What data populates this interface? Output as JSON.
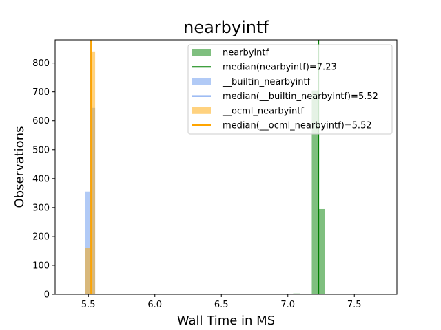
{
  "chart_data": {
    "type": "histogram",
    "title": "nearbyintf",
    "xlabel": "Wall Time in MS",
    "ylabel": "Observations",
    "xlim": [
      5.25,
      7.82
    ],
    "ylim": [
      0,
      880
    ],
    "xticks": [
      5.5,
      6.0,
      6.5,
      7.0,
      7.5
    ],
    "xtick_labels": [
      "5.5",
      "6.0",
      "6.5",
      "7.0",
      "7.5"
    ],
    "yticks": [
      0,
      100,
      200,
      300,
      400,
      500,
      600,
      700,
      800
    ],
    "ytick_labels": [
      "0",
      "100",
      "200",
      "300",
      "400",
      "500",
      "600",
      "700",
      "800"
    ],
    "grid": false,
    "legend_position": "top-right",
    "series": [
      {
        "name": "nearbyintf",
        "color": "#008000",
        "alpha": 0.5,
        "bins": [
          {
            "x0": 7.04,
            "x1": 7.09,
            "count": 3
          },
          {
            "x0": 7.18,
            "x1": 7.23,
            "count": 705
          },
          {
            "x0": 7.23,
            "x1": 7.28,
            "count": 295
          }
        ]
      },
      {
        "name": "__builtin_nearbyintf",
        "color": "#6495ED",
        "alpha": 0.5,
        "bins": [
          {
            "x0": 5.475,
            "x1": 5.513,
            "count": 355
          },
          {
            "x0": 5.513,
            "x1": 5.551,
            "count": 645
          }
        ]
      },
      {
        "name": "__ocml_nearbyintf",
        "color": "#FFA500",
        "alpha": 0.5,
        "bins": [
          {
            "x0": 5.475,
            "x1": 5.513,
            "count": 160
          },
          {
            "x0": 5.513,
            "x1": 5.551,
            "count": 840
          }
        ]
      }
    ],
    "medians": [
      {
        "label": "median(nearbyintf)=7.23",
        "value": 7.23,
        "color": "#008000"
      },
      {
        "label": "median(__builtin_nearbyintf)=5.52",
        "value": 5.52,
        "color": "#6495ED"
      },
      {
        "label": "median(__ocml_nearbyintf)=5.52",
        "value": 5.52,
        "color": "#FFA500"
      }
    ],
    "legend": [
      {
        "kind": "patch",
        "label": "nearbyintf",
        "color": "#008000"
      },
      {
        "kind": "line",
        "label": "median(nearbyintf)=7.23",
        "color": "#008000"
      },
      {
        "kind": "patch",
        "label": "__builtin_nearbyintf",
        "color": "#6495ED"
      },
      {
        "kind": "line",
        "label": "median(__builtin_nearbyintf)=5.52",
        "color": "#6495ED"
      },
      {
        "kind": "patch",
        "label": "__ocml_nearbyintf",
        "color": "#FFA500"
      },
      {
        "kind": "line",
        "label": "median(__ocml_nearbyintf)=5.52",
        "color": "#FFA500"
      }
    ]
  }
}
